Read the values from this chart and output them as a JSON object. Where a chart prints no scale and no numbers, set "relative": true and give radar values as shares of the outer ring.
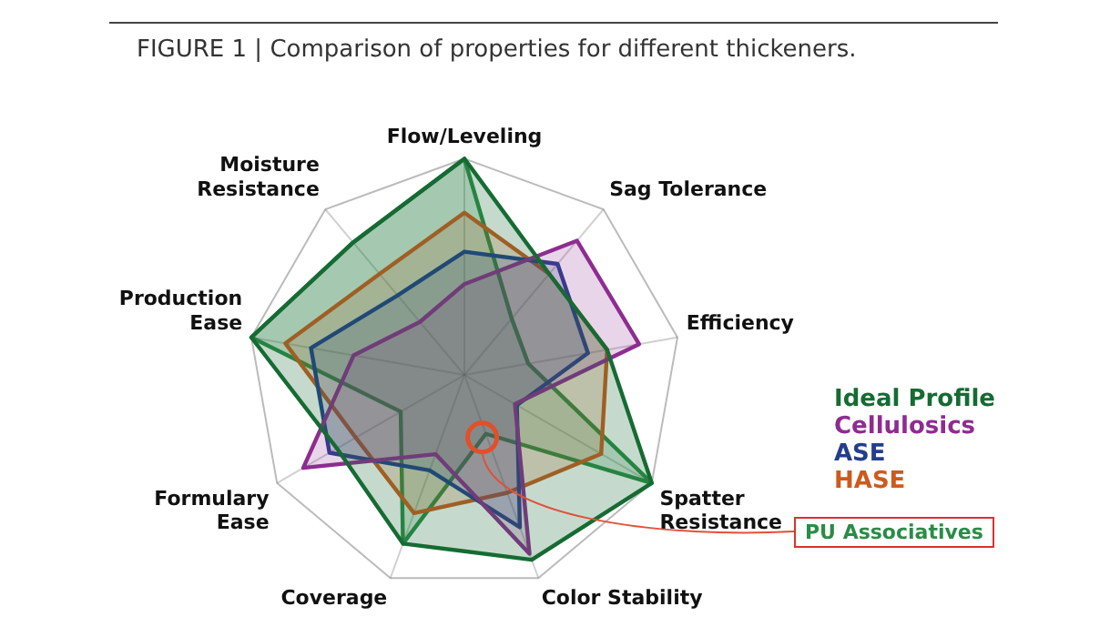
{
  "chart_data": {
    "type": "radar",
    "title": "FIGURE 1 | Comparison of properties for different thickeners.",
    "relative": true,
    "grid": true,
    "legend": "right",
    "categories": [
      "Flow/Leveling",
      "Sag Tolerance",
      "Efficiency",
      "Spatter\nResistance",
      "Color Stability",
      "Coverage",
      "Formulary\nEase",
      "Production\nEase",
      "Moisture\nResistance"
    ],
    "series": [
      {
        "name": "Ideal Profile",
        "color": "#166b33",
        "values": [
          1,
          0.61,
          0.67,
          1,
          0.91,
          0.83,
          0.68,
          1,
          0.8
        ]
      },
      {
        "name": "Cellulosics",
        "color": "#8e2c90",
        "values": [
          0.42,
          0.81,
          0.82,
          0.27,
          0.88,
          0.39,
          0.86,
          0.52,
          0.32
        ]
      },
      {
        "name": "ASE",
        "color": "#233e8c",
        "values": [
          0.57,
          0.67,
          0.58,
          0.28,
          0.75,
          0.47,
          0.72,
          0.72,
          0.48
        ]
      },
      {
        "name": "HASE",
        "color": "#cc5b1e",
        "values": [
          0.75,
          0.61,
          0.67,
          0.73,
          0.58,
          0.68,
          0.58,
          0.84,
          0.61
        ]
      },
      {
        "name": "PU Associatives",
        "color": "#2a8c46",
        "values": [
          1,
          0.34,
          0.3,
          1,
          0.29,
          0.83,
          0.34,
          1,
          0.8
        ]
      }
    ]
  }
}
